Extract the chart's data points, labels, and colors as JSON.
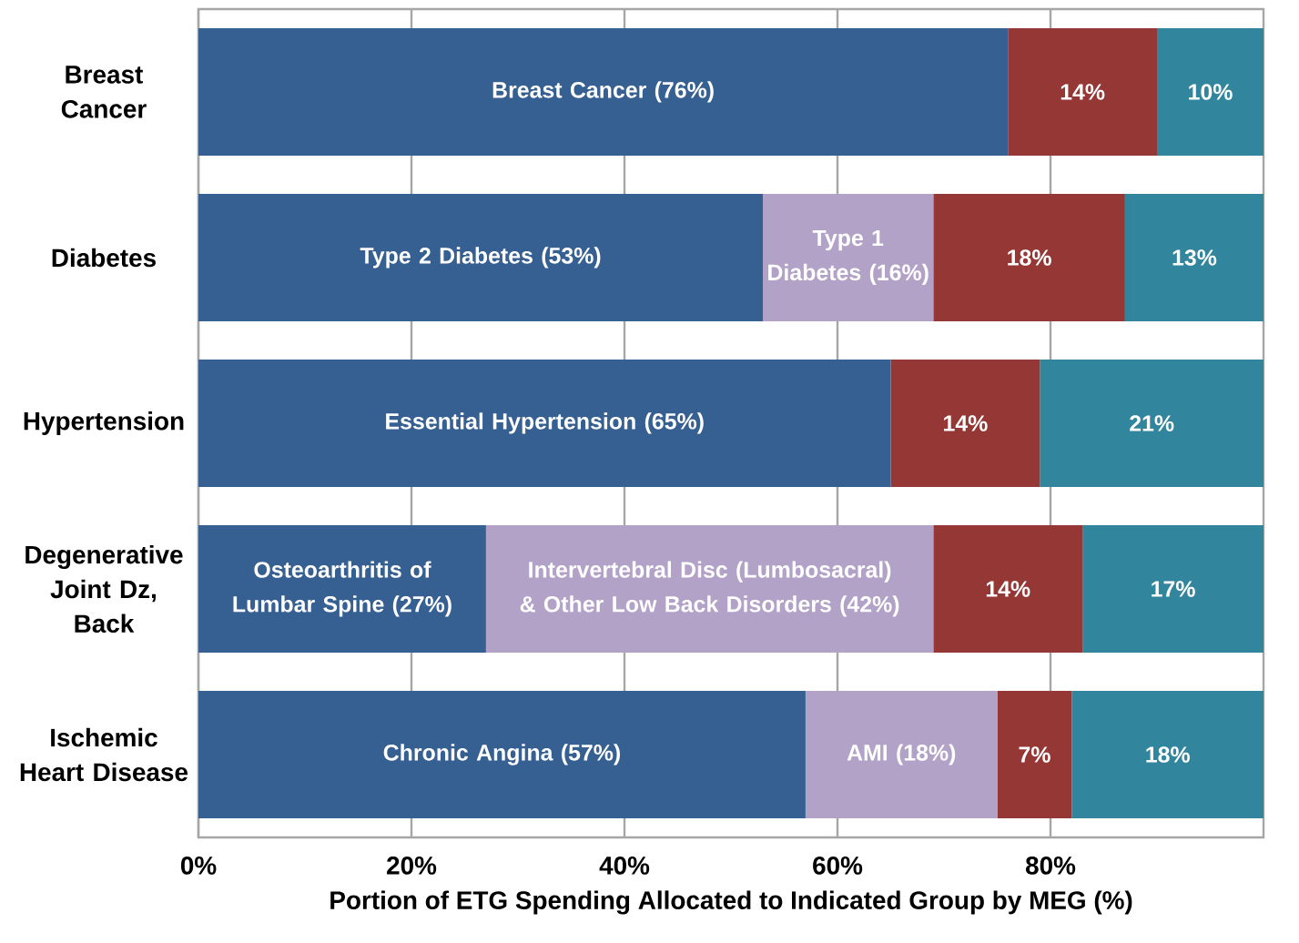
{
  "chart_data": {
    "type": "bar",
    "orientation": "horizontal",
    "stacked": true,
    "categories": [
      "Breast Cancer",
      "Diabetes",
      "Hypertension",
      "Degenerative Joint Dz, Back",
      "Ischemic Heart Disease"
    ],
    "series": [
      {
        "color": "#376092",
        "values": [
          76,
          53,
          65,
          27,
          57
        ],
        "value_labels": [
          "Breast Cancer (76%)",
          "Type 2 Diabetes (53%)",
          "Essential Hypertension (65%)",
          "Osteoarthritis of Lumbar Spine (27%)",
          "Chronic Angina (57%)"
        ]
      },
      {
        "color": "#b3a2c7",
        "values": [
          null,
          16,
          null,
          42,
          18
        ],
        "value_labels": [
          null,
          "Type 1 Diabetes (16%)",
          null,
          "Intervertebral Disc (Lumbosacral) & Other Low Back Disorders (42%)",
          "AMI (18%)"
        ]
      },
      {
        "color": "#953735",
        "values": [
          14,
          18,
          14,
          14,
          7
        ],
        "value_labels": [
          "14%",
          "18%",
          "14%",
          "14%",
          "7%"
        ]
      },
      {
        "color": "#31859c",
        "values": [
          10,
          13,
          21,
          17,
          18
        ],
        "value_labels": [
          "10%",
          "13%",
          "21%",
          "17%",
          "18%"
        ]
      }
    ],
    "xlabel": "Portion of ETG Spending Allocated to Indicated Group by MEG (%)",
    "xlim": [
      0,
      100
    ],
    "xticks": [
      {
        "value": 0,
        "label": "0%"
      },
      {
        "value": 20,
        "label": "20%"
      },
      {
        "value": 40,
        "label": "40%"
      },
      {
        "value": 60,
        "label": "60%"
      },
      {
        "value": 80,
        "label": "80%"
      }
    ],
    "grid": "x"
  }
}
